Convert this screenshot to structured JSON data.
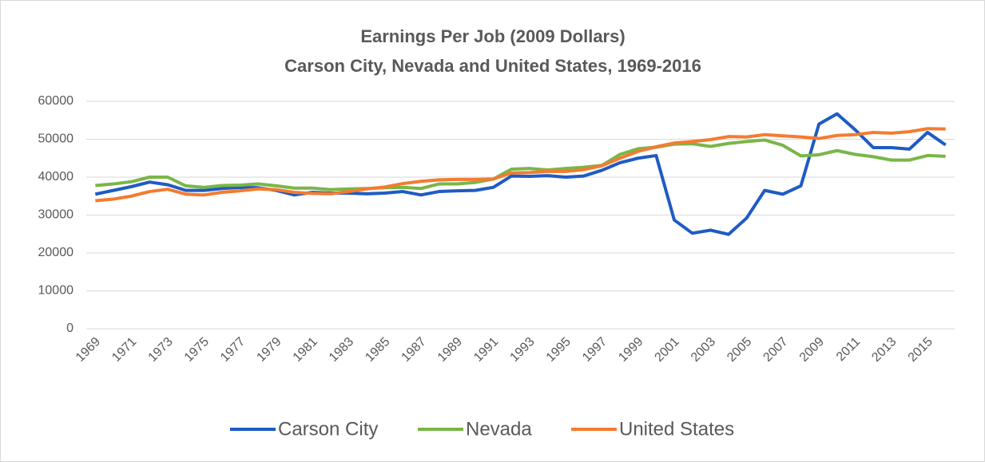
{
  "chart_data": {
    "type": "line",
    "title": "Earnings Per Job (2009 Dollars)",
    "subtitle": "Carson City, Nevada and United States, 1969-2016",
    "categories": [
      "1969",
      null,
      "1971",
      null,
      "1973",
      null,
      "1975",
      null,
      "1977",
      null,
      "1979",
      null,
      "1981",
      null,
      "1983",
      null,
      "1985",
      null,
      "1987",
      null,
      "1989",
      null,
      "1991",
      null,
      "1993",
      null,
      "1995",
      null,
      "1997",
      null,
      "1999",
      null,
      "2001",
      null,
      "2003",
      null,
      "2005",
      null,
      "2007",
      null,
      "2009",
      null,
      "2011",
      null,
      "2013",
      null,
      "2015",
      null
    ],
    "series": [
      {
        "name": "Carson City",
        "color": "#1f5bc4",
        "values": [
          35500,
          36500,
          37500,
          38700,
          38000,
          36500,
          36500,
          37000,
          37300,
          37200,
          36500,
          35300,
          36000,
          35800,
          35800,
          35600,
          35800,
          36200,
          35300,
          36200,
          36400,
          36500,
          37300,
          40300,
          40200,
          40400,
          40000,
          40300,
          41800,
          43800,
          45000,
          45700,
          28700,
          25200,
          26000,
          24900,
          29200,
          36500,
          35500,
          37700,
          54000,
          56700,
          52500,
          47800,
          47800,
          47400,
          51800,
          48500
        ]
      },
      {
        "name": "Nevada",
        "color": "#7ab648",
        "values": [
          37800,
          38200,
          38800,
          40000,
          40000,
          37700,
          37300,
          37800,
          37900,
          38200,
          37700,
          37100,
          37100,
          36700,
          36900,
          37000,
          37200,
          37300,
          37000,
          38200,
          38200,
          38600,
          39500,
          42100,
          42300,
          41900,
          42300,
          42600,
          43100,
          46000,
          47500,
          47900,
          48700,
          48800,
          48100,
          48900,
          49400,
          49800,
          48400,
          45600,
          45900,
          47000,
          46000,
          45400,
          44500,
          44500,
          45700,
          45500
        ]
      },
      {
        "name": "United States",
        "color": "#f47b30",
        "values": [
          33800,
          34200,
          35000,
          36200,
          36800,
          35500,
          35300,
          36000,
          36400,
          36900,
          36700,
          36000,
          35700,
          35600,
          36200,
          36900,
          37400,
          38300,
          38900,
          39300,
          39400,
          39400,
          39500,
          41100,
          41200,
          41500,
          41500,
          42000,
          43000,
          45000,
          46800,
          48000,
          49000,
          49400,
          49900,
          50700,
          50600,
          51200,
          50900,
          50600,
          50200,
          51000,
          51200,
          51800,
          51600,
          52000,
          52800,
          52700
        ]
      }
    ],
    "ylim": [
      0,
      60000
    ],
    "yticks": [
      0,
      10000,
      20000,
      30000,
      40000,
      50000,
      60000
    ],
    "grid": true,
    "legend": "bottom"
  }
}
